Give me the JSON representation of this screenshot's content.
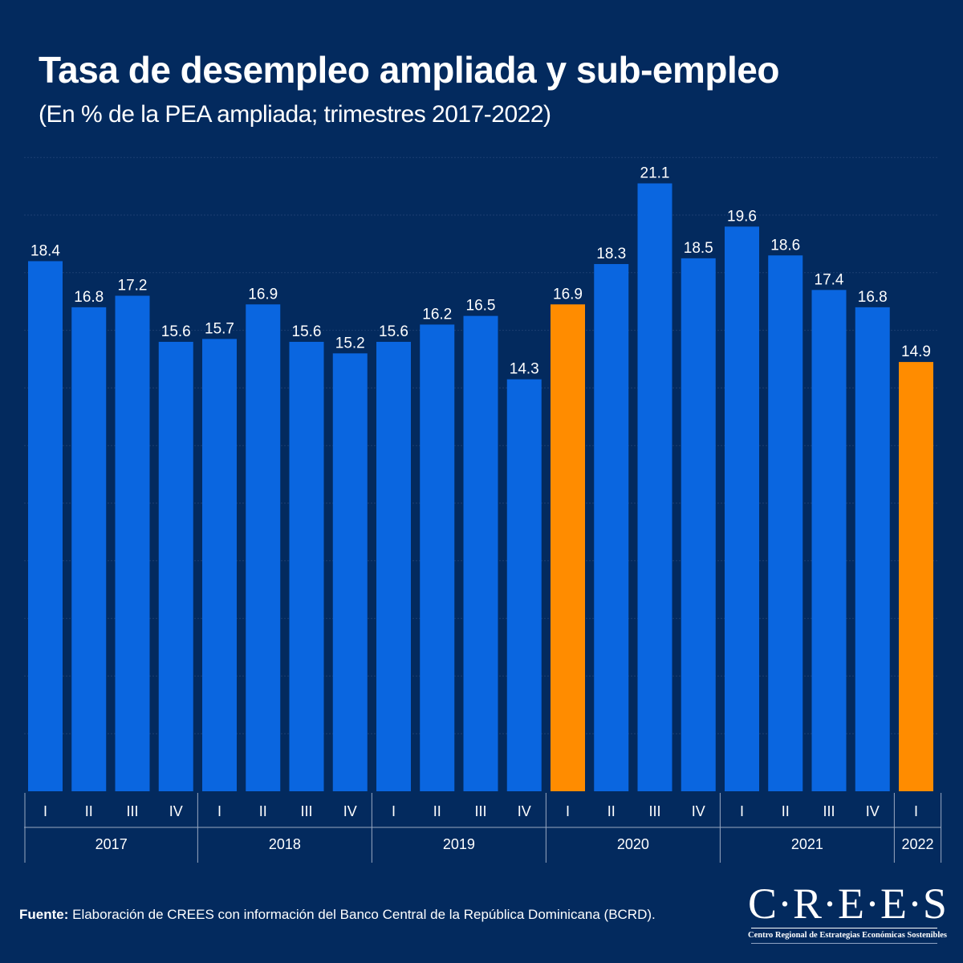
{
  "title": "Tasa de desempleo ampliada y sub-empleo",
  "subtitle": "(En % de la PEA ampliada; trimestres 2017-2022)",
  "source": {
    "label": "Fuente:",
    "text": " Elaboración de CREES con información del Banco Central de la República Dominicana (BCRD)."
  },
  "logo": {
    "name": "C·R·E·E·S",
    "tagline": "Centro Regional de Estrategias Económicas Sostenibles"
  },
  "colors": {
    "background": "#032a5e",
    "bar_default": "#0a66e0",
    "bar_highlight": "#ff8c00",
    "text": "#ffffff",
    "axis_line": "#9aa8c0"
  },
  "chart_data": {
    "type": "bar",
    "title": "Tasa de desempleo ampliada y sub-empleo",
    "subtitle": "(En % de la PEA ampliada; trimestres 2017-2022)",
    "xlabel": "",
    "ylabel": "",
    "ylim": [
      0,
      22
    ],
    "grid": true,
    "grid_step": 2,
    "legend": "none",
    "categories": [
      "I",
      "II",
      "III",
      "IV",
      "I",
      "II",
      "III",
      "IV",
      "I",
      "II",
      "III",
      "IV",
      "I",
      "II",
      "III",
      "IV",
      "I",
      "II",
      "III",
      "IV",
      "I"
    ],
    "years": [
      {
        "label": "2017",
        "count": 4
      },
      {
        "label": "2018",
        "count": 4
      },
      {
        "label": "2019",
        "count": 4
      },
      {
        "label": "2020",
        "count": 4
      },
      {
        "label": "2021",
        "count": 4
      },
      {
        "label": "2022",
        "count": 1
      }
    ],
    "values": [
      18.4,
      16.8,
      17.2,
      15.6,
      15.7,
      16.9,
      15.6,
      15.2,
      15.6,
      16.2,
      16.5,
      14.3,
      16.9,
      18.3,
      21.1,
      18.5,
      19.6,
      18.6,
      17.4,
      16.8,
      14.9
    ],
    "highlighted": [
      12,
      20
    ],
    "data_labels": [
      "18.4",
      "16.8",
      "17.2",
      "15.6",
      "15.7",
      "16.9",
      "15.6",
      "15.2",
      "15.6",
      "16.2",
      "16.5",
      "14.3",
      "16.9",
      "18.3",
      "21.1",
      "18.5",
      "19.6",
      "18.6",
      "17.4",
      "16.8",
      "14.9"
    ]
  }
}
